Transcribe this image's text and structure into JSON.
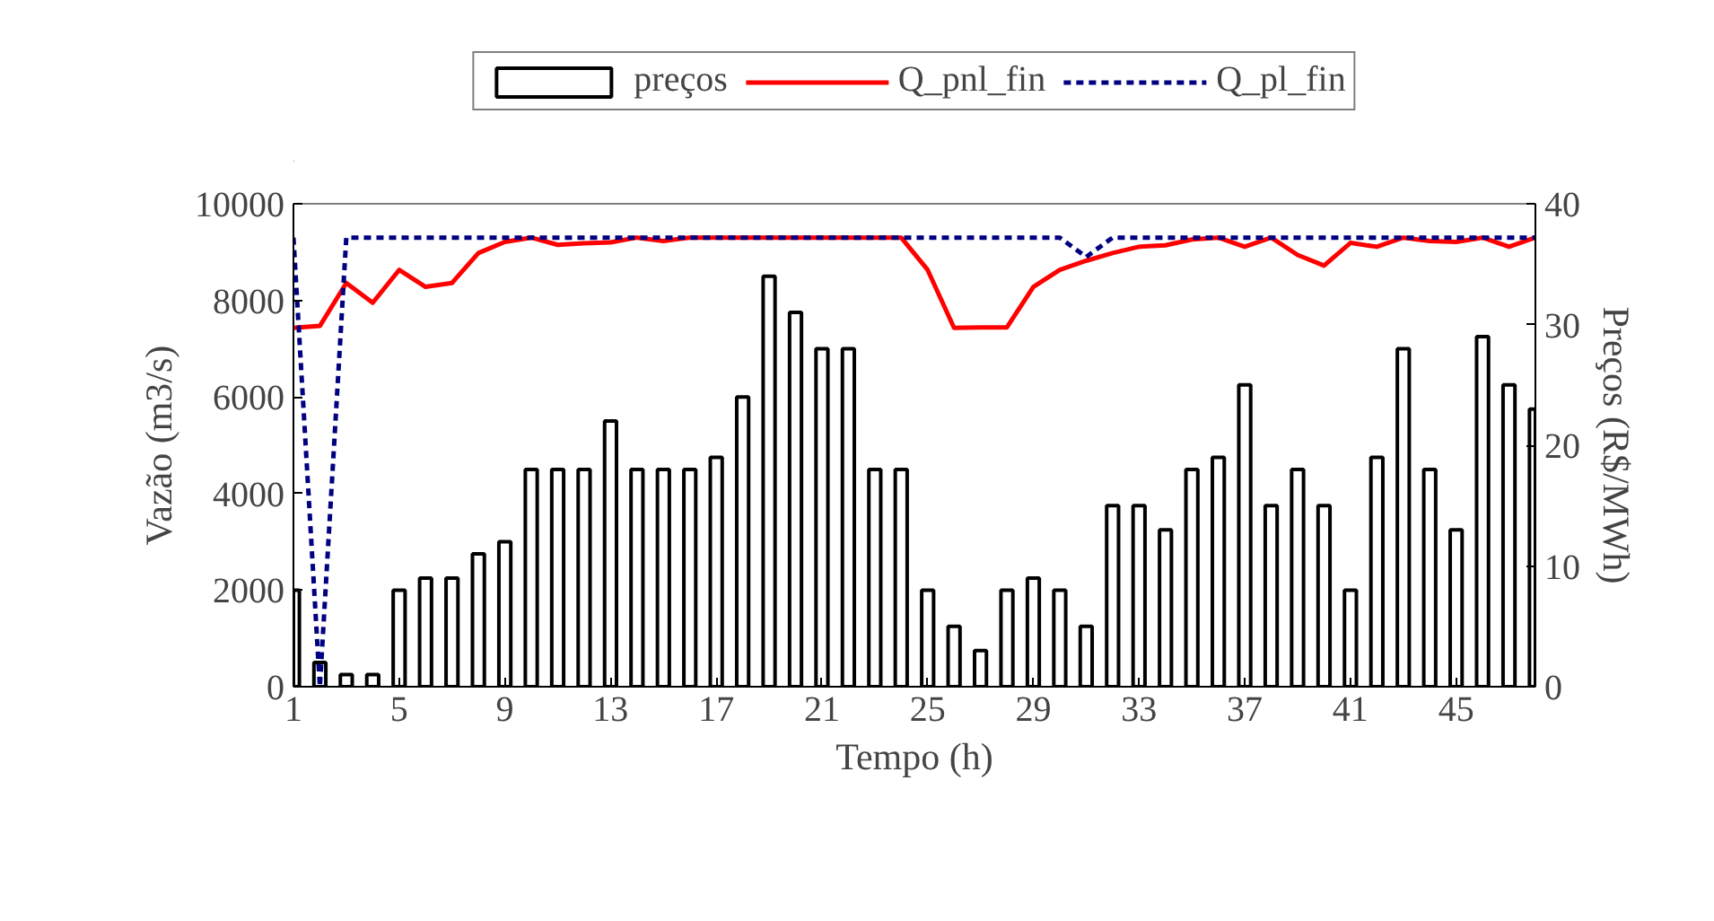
{
  "chart_data": {
    "type": "line",
    "xlabel": "Tempo (h)",
    "ylabel": "Vazão (m3/s)",
    "y2label": "Preços (R$/MWh)",
    "x": [
      1,
      2,
      3,
      4,
      5,
      6,
      7,
      8,
      9,
      10,
      11,
      12,
      13,
      14,
      15,
      16,
      17,
      18,
      19,
      20,
      21,
      22,
      23,
      24,
      25,
      26,
      27,
      28,
      29,
      30,
      31,
      32,
      33,
      34,
      35,
      36,
      37,
      38,
      39,
      40,
      41,
      42,
      43,
      44,
      45,
      46,
      47,
      48
    ],
    "xlim": [
      1,
      48
    ],
    "xticks": [
      1,
      5,
      9,
      13,
      17,
      21,
      25,
      29,
      33,
      37,
      41,
      45
    ],
    "ylim": [
      0,
      10000
    ],
    "yticks": [
      0,
      2000,
      4000,
      6000,
      8000,
      10000
    ],
    "y2lim": [
      0,
      40
    ],
    "y2ticks": [
      0,
      10,
      20,
      30,
      40
    ],
    "legend": "top",
    "grid": false,
    "series": [
      {
        "name": "preços",
        "type": "bar",
        "axis": "y2",
        "color": "#ffffff",
        "values": [
          8,
          2,
          1,
          1,
          8,
          9,
          9,
          11,
          12,
          18,
          18,
          18,
          22,
          18,
          18,
          18,
          19,
          24,
          34,
          31,
          28,
          28,
          18,
          18,
          8,
          5,
          3,
          8,
          9,
          8,
          5,
          15,
          15,
          13,
          18,
          19,
          25,
          15,
          18,
          15,
          8,
          19,
          28,
          18,
          13,
          29,
          25,
          23
        ]
      },
      {
        "name": "Q_pnl_fin",
        "line_style": "solid",
        "color": "#ff0000",
        "values": [
          7430,
          7470,
          8360,
          7950,
          8630,
          8280,
          8360,
          8980,
          9210,
          9300,
          9150,
          9180,
          9200,
          9300,
          9230,
          9300,
          9300,
          9300,
          9300,
          9300,
          9300,
          9300,
          9300,
          9300,
          8630,
          7430,
          7440,
          7440,
          8280,
          8630,
          8820,
          8980,
          9110,
          9140,
          9260,
          9300,
          9110,
          9300,
          8940,
          8720,
          9190,
          9110,
          9300,
          9230,
          9210,
          9300,
          9110,
          9300
        ]
      },
      {
        "name": "Q_pl_fin",
        "line_style": "dashed",
        "color": "#000080",
        "values": [
          9300,
          0,
          9300,
          9300,
          9300,
          9300,
          9300,
          9300,
          9300,
          9300,
          9300,
          9300,
          9300,
          9300,
          9300,
          9300,
          9300,
          9300,
          9300,
          9300,
          9300,
          9300,
          9300,
          9300,
          9300,
          9300,
          9300,
          9300,
          9300,
          9300,
          8900,
          9300,
          9300,
          9300,
          9300,
          9300,
          9300,
          9300,
          9300,
          9300,
          9300,
          9300,
          9300,
          9300,
          9300,
          9300,
          9300,
          9300
        ]
      }
    ]
  }
}
